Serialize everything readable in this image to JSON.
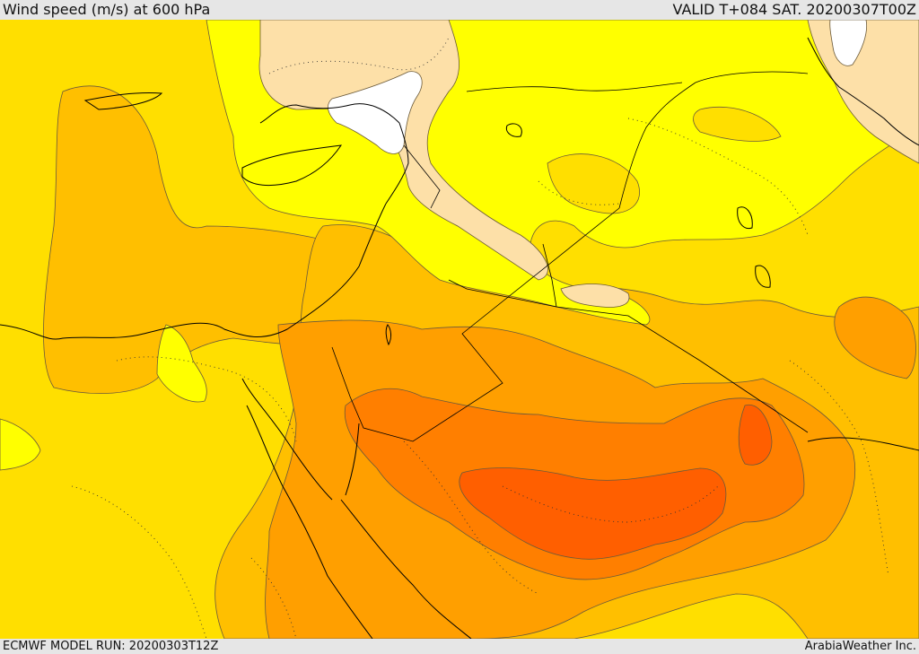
{
  "header": {
    "title": "Wind speed (m/s) at 600 hPa",
    "valid_time": "VALID T+084 SAT. 20200307T00Z"
  },
  "footer": {
    "model_run": "ECMWF MODEL RUN: 20200303T12Z",
    "provider": "ArabiaWeather Inc."
  },
  "colors": {
    "band_0_5": "#ffffff",
    "band_5_10": "#fde0a8",
    "band_10_15": "#ffff00",
    "band_15_20": "#ffdf00",
    "band_20_25": "#ffbf00",
    "band_25_30": "#ff9f00",
    "band_30_35": "#ff7f00",
    "band_35_40": "#ff5f00",
    "contour": "#6b5a3a",
    "coastline": "#000000"
  }
}
